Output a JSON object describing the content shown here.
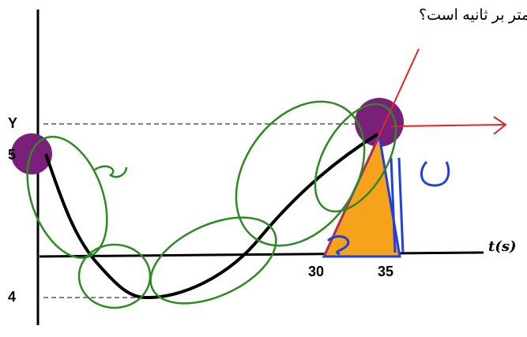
{
  "question": "ک متر بر ثانیه است؟",
  "axis": {
    "time_label": "t(s)",
    "y_marks": [
      "Y",
      "5",
      "4"
    ],
    "t_marks": [
      "30",
      "35"
    ]
  }
}
